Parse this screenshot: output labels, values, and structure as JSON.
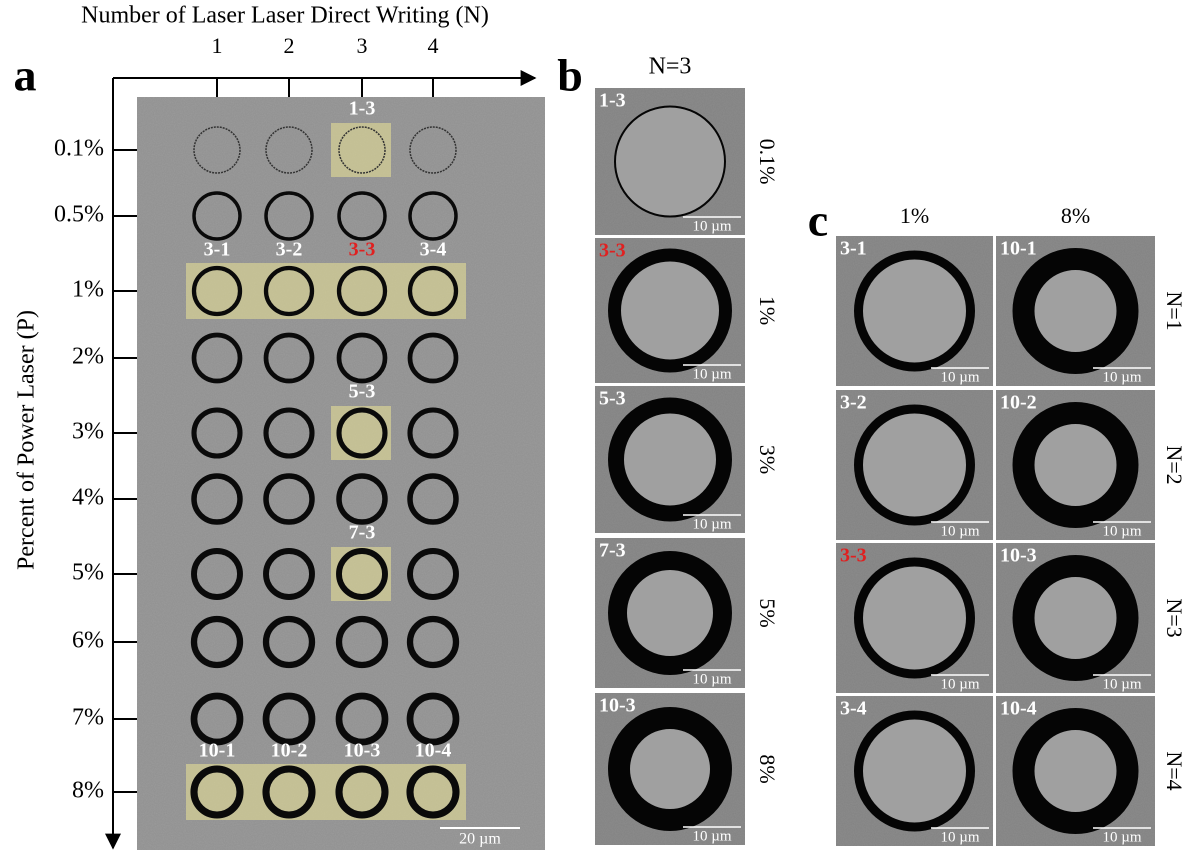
{
  "panel_a": {
    "letter": "a",
    "x_axis_title": "Number of Laser Laser Direct Writing (N)",
    "x_labels": [
      "1",
      "2",
      "3",
      "4"
    ],
    "y_axis_title": "Percent of Power Laser (P)",
    "rows": [
      {
        "label": "0.1%",
        "tags": [
          null,
          null,
          "1-3",
          null
        ]
      },
      {
        "label": "0.5%",
        "tags": [
          null,
          null,
          null,
          null
        ]
      },
      {
        "label": "1%",
        "tags": [
          "3-1",
          "3-2",
          {
            "text": "3-3",
            "color": "#e02020"
          },
          "3-4"
        ]
      },
      {
        "label": "2%",
        "tags": [
          null,
          null,
          null,
          null
        ]
      },
      {
        "label": "3%",
        "tags": [
          null,
          null,
          "5-3",
          null
        ]
      },
      {
        "label": "4%",
        "tags": [
          null,
          null,
          null,
          null
        ]
      },
      {
        "label": "5%",
        "tags": [
          null,
          null,
          "7-3",
          null
        ]
      },
      {
        "label": "6%",
        "tags": [
          null,
          null,
          null,
          null
        ]
      },
      {
        "label": "7%",
        "tags": [
          null,
          null,
          null,
          null
        ]
      },
      {
        "label": "8%",
        "tags": [
          "10-1",
          "10-2",
          "10-3",
          "10-4"
        ]
      }
    ],
    "scale": "20 µm"
  },
  "panel_b": {
    "letter": "b",
    "title": "N=3",
    "images": [
      {
        "tag": "1-3",
        "power": "0.1%",
        "scale": "10 µm"
      },
      {
        "tag": "3-3",
        "tag_color": "#e02020",
        "power": "1%",
        "scale": "10 µm"
      },
      {
        "tag": "5-3",
        "power": "3%",
        "scale": "10 µm"
      },
      {
        "tag": "7-3",
        "power": "5%",
        "scale": "10 µm"
      },
      {
        "tag": "10-3",
        "power": "8%",
        "scale": "10 µm"
      }
    ]
  },
  "panel_c": {
    "letter": "c",
    "columns": [
      "1%",
      "8%"
    ],
    "rows": [
      {
        "label": "N=1",
        "cells": [
          {
            "tag": "3-1",
            "scale": "10 µm"
          },
          {
            "tag": "10-1",
            "scale": "10 µm"
          }
        ]
      },
      {
        "label": "N=2",
        "cells": [
          {
            "tag": "3-2",
            "scale": "10 µm"
          },
          {
            "tag": "10-2",
            "scale": "10 µm"
          }
        ]
      },
      {
        "label": "N=3",
        "cells": [
          {
            "tag": "3-3",
            "tag_color": "#e02020",
            "scale": "10 µm"
          },
          {
            "tag": "10-3",
            "scale": "10 µm"
          }
        ]
      },
      {
        "label": "N=4",
        "cells": [
          {
            "tag": "3-4",
            "scale": "10 µm"
          },
          {
            "tag": "10-4",
            "scale": "10 µm"
          }
        ]
      }
    ]
  }
}
